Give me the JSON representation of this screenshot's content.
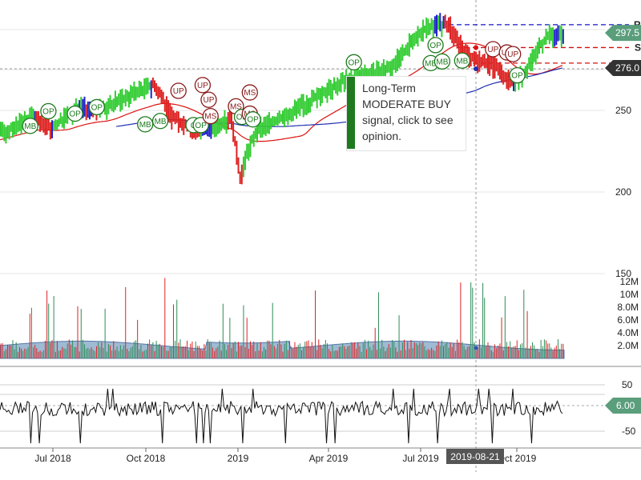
{
  "chart_data": {
    "type": "candlestick",
    "panels": [
      {
        "name": "price",
        "y_ticks": [
          "250",
          "200",
          "150"
        ],
        "ylim": [
          150,
          305
        ],
        "price_tags": [
          {
            "label": "297.5",
            "value": 297.5,
            "color": "#5a9e7c"
          },
          {
            "label": "276.0",
            "value": 276.0,
            "color": "#333333"
          }
        ],
        "reference_lines": [
          {
            "label": "R",
            "value": 302.5,
            "color": "#1515c8"
          },
          {
            "label": "S",
            "value": 288.5,
            "color": "#d01010"
          },
          {
            "value": 279.0,
            "color": "#d01010"
          }
        ],
        "resistance_label": "R",
        "support_label": "S",
        "signals": [
          {
            "label": "MB",
            "x": 0.05,
            "price": 240.5,
            "kind": "buy"
          },
          {
            "label": "OP",
            "x": 0.08,
            "price": 249.5,
            "kind": "buy"
          },
          {
            "label": "OP",
            "x": 0.124,
            "price": 248.0,
            "kind": "buy"
          },
          {
            "label": "OP",
            "x": 0.16,
            "price": 252.0,
            "kind": "buy"
          },
          {
            "label": "MB",
            "x": 0.24,
            "price": 241.5,
            "kind": "buy"
          },
          {
            "label": "MB",
            "x": 0.265,
            "price": 243.5,
            "kind": "buy"
          },
          {
            "label": "UP",
            "x": 0.295,
            "price": 262.0,
            "kind": "sell"
          },
          {
            "label": "UP",
            "x": 0.335,
            "price": 265.5,
            "kind": "sell"
          },
          {
            "label": "UP",
            "x": 0.345,
            "price": 256.5,
            "kind": "sell"
          },
          {
            "label": "O",
            "x": 0.32,
            "price": 241.0,
            "kind": "buy"
          },
          {
            "label": "OP",
            "x": 0.332,
            "price": 241.0,
            "kind": "buy"
          },
          {
            "label": "MS",
            "x": 0.348,
            "price": 246.5,
            "kind": "sell"
          },
          {
            "label": "MS",
            "x": 0.39,
            "price": 252.5,
            "kind": "sell"
          },
          {
            "label": "OP",
            "x": 0.4,
            "price": 246.0,
            "kind": "buy"
          },
          {
            "label": "MS",
            "x": 0.413,
            "price": 261.0,
            "kind": "sell"
          },
          {
            "label": "MS",
            "x": 0.413,
            "price": 248.0,
            "kind": "sell"
          },
          {
            "label": "OP",
            "x": 0.418,
            "price": 244.5,
            "kind": "buy"
          },
          {
            "label": "OP",
            "x": 0.585,
            "price": 279.5,
            "kind": "buy"
          },
          {
            "label": "OP",
            "x": 0.72,
            "price": 290.0,
            "kind": "buy"
          },
          {
            "label": "MB",
            "x": 0.712,
            "price": 279.0,
            "kind": "buy"
          },
          {
            "label": "MB",
            "x": 0.731,
            "price": 280.0,
            "kind": "buy"
          },
          {
            "label": "MB",
            "x": 0.764,
            "price": 280.5,
            "kind": "buy"
          },
          {
            "label": "UP",
            "x": 0.815,
            "price": 287.5,
            "kind": "sell"
          },
          {
            "label": "UP",
            "x": 0.838,
            "price": 285.5,
            "kind": "sell"
          },
          {
            "label": "UP",
            "x": 0.848,
            "price": 284.5,
            "kind": "sell"
          },
          {
            "label": "OP",
            "x": 0.855,
            "price": 271.5,
            "kind": "buy"
          }
        ]
      },
      {
        "name": "volume",
        "y_ticks": [
          "12M",
          "10M",
          "8.0M",
          "6.0M",
          "4.0M",
          "2.0M"
        ],
        "ylim": [
          0,
          12
        ]
      },
      {
        "name": "oscillator",
        "y_ticks": [
          "50",
          "-50"
        ],
        "ylim": [
          -75,
          55
        ],
        "value_tag": "6.00",
        "value": 6.0,
        "value_tag_color": "#5a9e7c"
      }
    ],
    "x_ticks": [
      "Jul 2018",
      "Oct 2018",
      "2019",
      "Apr 2019",
      "Jul 2019",
      "Oct 2019"
    ],
    "crosshair_date": "2019-08-21",
    "colors": {
      "up": "#33cc33",
      "down": "#dd2222",
      "neutral": "#2222cc",
      "ma_red": "#dd1111",
      "ma_blue": "#1f2fb0",
      "volume_area": "#7fa3c4"
    }
  },
  "opinion": {
    "text": "Long-Term MODERATE BUY signal, click to see opinion.",
    "color": "#1f7a1f"
  }
}
